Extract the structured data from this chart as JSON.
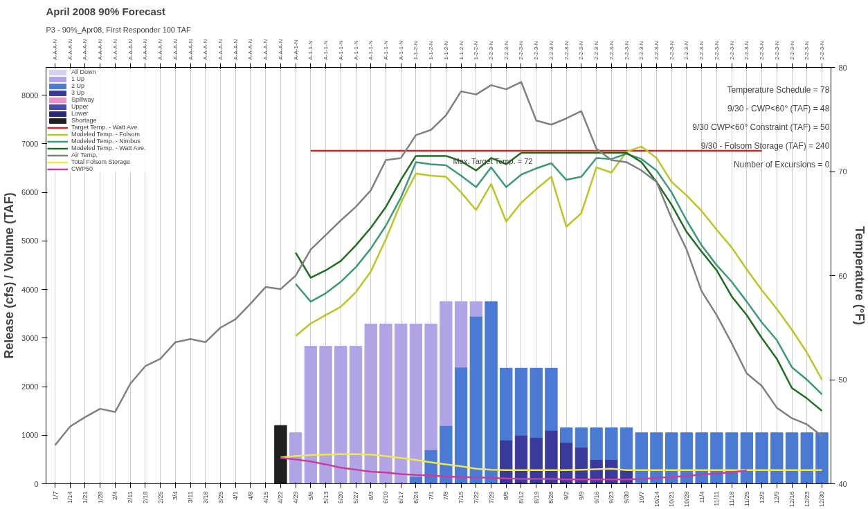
{
  "chart_data": {
    "type": "bar",
    "stacked": true,
    "title": "April 2008 90% Forecast",
    "subtitle": "P3 - 90%_Apr08, First Responder 100 TAF",
    "ylabel": "Release (cfs) / Volume (TAF)",
    "y2label": "Temperature (°F)",
    "categories": [
      "1/7",
      "1/14",
      "1/21",
      "1/28",
      "2/4",
      "2/11",
      "2/18",
      "2/25",
      "3/4",
      "3/11",
      "3/18",
      "3/25",
      "4/1",
      "4/8",
      "4/15",
      "4/22",
      "4/29",
      "5/6",
      "5/13",
      "5/20",
      "5/27",
      "6/3",
      "6/10",
      "6/17",
      "6/24",
      "7/1",
      "7/8",
      "7/15",
      "7/22",
      "7/29",
      "8/5",
      "8/12",
      "8/19",
      "8/26",
      "9/2",
      "9/9",
      "9/16",
      "9/23",
      "9/30",
      "10/7",
      "10/14",
      "10/21",
      "10/28",
      "11/4",
      "11/11",
      "11/18",
      "11/25",
      "12/2",
      "12/9",
      "12/16",
      "12/23",
      "12/30"
    ],
    "ylim": [
      0,
      8570
    ],
    "yticks": [
      0,
      1000,
      2000,
      3000,
      4000,
      5000,
      6000,
      7000,
      8000
    ],
    "y2lim": [
      40,
      80
    ],
    "y2ticks": [
      40,
      50,
      60,
      70,
      80
    ],
    "grid": "x",
    "legend": "top left",
    "series": [
      {
        "name": "Shortage",
        "color": "#202020",
        "values": [
          null,
          null,
          null,
          null,
          null,
          null,
          null,
          null,
          null,
          null,
          null,
          null,
          null,
          null,
          null,
          1200,
          null,
          null,
          null,
          null,
          null,
          null,
          null,
          null,
          null,
          null,
          null,
          null,
          null,
          null,
          null,
          null,
          null,
          null,
          null,
          null,
          null,
          null,
          null,
          null,
          null,
          null,
          null,
          null,
          null,
          null,
          null,
          null,
          null,
          null,
          null,
          null
        ]
      },
      {
        "name": "Lower",
        "color": "#2a2878",
        "values": [
          null,
          null,
          null,
          null,
          null,
          null,
          null,
          null,
          null,
          null,
          null,
          null,
          null,
          null,
          null,
          null,
          null,
          null,
          null,
          null,
          null,
          null,
          null,
          null,
          null,
          null,
          null,
          null,
          null,
          null,
          null,
          null,
          null,
          null,
          null,
          null,
          null,
          null,
          null,
          null,
          null,
          null,
          null,
          null,
          null,
          null,
          null,
          null,
          null,
          null,
          null,
          null
        ]
      },
      {
        "name": "Upper",
        "color": "#4848b0",
        "values": [
          null,
          null,
          null,
          null,
          null,
          null,
          null,
          null,
          null,
          null,
          null,
          null,
          null,
          null,
          null,
          null,
          null,
          null,
          null,
          null,
          null,
          null,
          null,
          null,
          null,
          null,
          null,
          null,
          null,
          null,
          null,
          null,
          null,
          null,
          null,
          null,
          null,
          null,
          null,
          null,
          null,
          null,
          null,
          null,
          null,
          null,
          null,
          null,
          null,
          null,
          null,
          null
        ]
      },
      {
        "name": "Spillway",
        "color": "#f090c8",
        "values": [
          null,
          null,
          null,
          null,
          null,
          null,
          null,
          null,
          null,
          null,
          null,
          null,
          null,
          null,
          null,
          null,
          null,
          null,
          null,
          null,
          null,
          null,
          null,
          null,
          null,
          null,
          null,
          null,
          null,
          null,
          null,
          null,
          null,
          null,
          null,
          null,
          null,
          null,
          null,
          null,
          null,
          null,
          null,
          null,
          null,
          null,
          null,
          null,
          null,
          null,
          null,
          null
        ]
      },
      {
        "name": "3 Up",
        "color": "#3a3a9c",
        "values": [
          null,
          null,
          null,
          null,
          null,
          null,
          null,
          null,
          null,
          null,
          null,
          null,
          null,
          null,
          null,
          null,
          null,
          null,
          null,
          null,
          null,
          null,
          null,
          null,
          null,
          null,
          null,
          null,
          null,
          null,
          900,
          1000,
          950,
          1100,
          850,
          750,
          500,
          500,
          300,
          null,
          null,
          null,
          null,
          null,
          null,
          null,
          null,
          null,
          null,
          null,
          null,
          null
        ]
      },
      {
        "name": "2 Up",
        "color": "#4a7ad4",
        "values": [
          null,
          null,
          null,
          null,
          null,
          null,
          null,
          null,
          null,
          null,
          null,
          null,
          null,
          null,
          null,
          null,
          null,
          null,
          null,
          null,
          null,
          null,
          null,
          null,
          150,
          700,
          1200,
          2400,
          3450,
          3750,
          1480,
          1380,
          1430,
          1280,
          300,
          400,
          650,
          650,
          850,
          1050,
          1050,
          1050,
          1050,
          1050,
          1050,
          1050,
          1050,
          1050,
          1050,
          1050,
          1050,
          1050
        ]
      },
      {
        "name": "1 Up",
        "color": "#b0a4e6",
        "values": [
          null,
          null,
          null,
          null,
          null,
          null,
          null,
          null,
          null,
          null,
          null,
          null,
          null,
          null,
          null,
          null,
          1050,
          2830,
          2830,
          2830,
          2830,
          3290,
          3290,
          3290,
          3140,
          2590,
          2550,
          1350,
          300,
          null,
          null,
          null,
          null,
          null,
          null,
          null,
          null,
          null,
          null,
          null,
          null,
          null,
          null,
          null,
          null,
          null,
          null,
          null,
          null,
          null,
          null,
          null
        ]
      },
      {
        "name": "All Down",
        "color": "#d4d0f0",
        "values": [
          null,
          null,
          null,
          null,
          null,
          null,
          null,
          null,
          null,
          null,
          null,
          null,
          null,
          null,
          null,
          null,
          null,
          null,
          null,
          null,
          null,
          null,
          null,
          null,
          null,
          null,
          null,
          null,
          null,
          null,
          null,
          null,
          null,
          null,
          null,
          null,
          null,
          null,
          null,
          null,
          null,
          null,
          null,
          null,
          null,
          null,
          null,
          null,
          null,
          null,
          null,
          null
        ]
      },
      {
        "name": "Target Temp. - Watt Ave.",
        "type": "line",
        "axis": "y2",
        "color": "#e02020",
        "values": [
          null,
          null,
          null,
          null,
          null,
          null,
          null,
          null,
          null,
          null,
          null,
          null,
          null,
          null,
          null,
          null,
          null,
          72,
          72,
          72,
          72,
          72,
          72,
          72,
          72,
          72,
          72,
          72,
          72,
          72,
          72,
          72,
          72,
          72,
          72,
          72,
          72,
          72,
          72,
          72,
          72,
          72,
          72,
          72,
          72,
          72,
          72,
          72,
          null,
          null,
          null,
          null
        ]
      },
      {
        "name": "Modeled Temp. - Folsom",
        "type": "line",
        "axis": "y2",
        "color": "#b8c820",
        "values": [
          null,
          null,
          null,
          null,
          null,
          null,
          null,
          null,
          null,
          null,
          null,
          null,
          null,
          null,
          null,
          null,
          54.2,
          55.4,
          56.2,
          57.0,
          58.4,
          60.4,
          63.5,
          67.0,
          69.8,
          69.6,
          69.5,
          68.0,
          66.3,
          68.8,
          65.2,
          67.0,
          68.3,
          69.5,
          64.7,
          66.0,
          70.4,
          69.9,
          71.9,
          72.4,
          71.3,
          69.0,
          67.7,
          66.2,
          64.4,
          62.7,
          60.6,
          58.6,
          56.8,
          54.8,
          52.6,
          50.0
        ]
      },
      {
        "name": "Modeled Temp. - Nimbus",
        "type": "line",
        "axis": "y2",
        "color": "#3a9a78",
        "values": [
          null,
          null,
          null,
          null,
          null,
          null,
          null,
          null,
          null,
          null,
          null,
          null,
          null,
          null,
          null,
          null,
          59.2,
          57.5,
          58.3,
          59.4,
          60.8,
          62.6,
          64.8,
          67.5,
          70.9,
          70.7,
          70.6,
          69.6,
          68.5,
          70.4,
          68.5,
          69.7,
          70.3,
          70.8,
          69.2,
          69.5,
          71.3,
          71.2,
          71.7,
          71.2,
          70.1,
          68.0,
          65.3,
          62.9,
          61.0,
          59.4,
          57.5,
          55.5,
          53.8,
          51.2,
          50.0,
          48.6
        ]
      },
      {
        "name": "Modeled Temp. - Watt Ave.",
        "type": "line",
        "axis": "y2",
        "color": "#1e6e1e",
        "values": [
          null,
          null,
          null,
          null,
          null,
          null,
          null,
          null,
          null,
          null,
          null,
          null,
          null,
          null,
          null,
          null,
          62.2,
          59.8,
          60.5,
          61.4,
          62.9,
          64.6,
          66.6,
          69.2,
          71.5,
          71.5,
          71.5,
          71.0,
          70.1,
          71.3,
          70.7,
          71.8,
          71.8,
          71.8,
          71.8,
          71.8,
          71.8,
          71.8,
          71.8,
          70.9,
          69.0,
          66.8,
          64.2,
          62.3,
          60.5,
          58.0,
          56.2,
          54.0,
          52.0,
          49.2,
          48.2,
          47.0
        ]
      },
      {
        "name": "Air Temp.",
        "type": "line",
        "axis": "y2",
        "color": "#808080",
        "values": [
          43.7,
          45.5,
          46.4,
          47.2,
          46.9,
          49.6,
          51.3,
          52.0,
          53.6,
          53.9,
          53.6,
          55.0,
          55.8,
          57.3,
          58.9,
          58.7,
          60.0,
          62.5,
          63.9,
          65.3,
          66.6,
          68.2,
          71.1,
          71.3,
          73.5,
          74.0,
          75.4,
          77.7,
          77.4,
          78.3,
          77.9,
          78.6,
          74.9,
          74.5,
          75.1,
          75.8,
          72.2,
          71.1,
          70.9,
          70.1,
          69.0,
          65.5,
          62.5,
          58.5,
          56.2,
          53.5,
          50.6,
          49.4,
          47.3,
          46.3,
          45.7,
          44.6
        ]
      },
      {
        "name": "Total Folsom Storage",
        "type": "line",
        "color": "#f0e84a",
        "values": [
          null,
          null,
          null,
          null,
          null,
          null,
          null,
          null,
          null,
          null,
          null,
          null,
          null,
          null,
          null,
          540,
          570,
          590,
          600,
          610,
          610,
          600,
          570,
          530,
          490,
          440,
          400,
          360,
          310,
          290,
          280,
          280,
          280,
          280,
          280,
          290,
          300,
          310,
          280,
          280,
          280,
          280,
          280,
          280,
          280,
          280,
          280,
          280,
          280,
          280,
          280,
          280
        ]
      },
      {
        "name": "CWP50",
        "type": "line",
        "color": "#c83ca0",
        "values": [
          null,
          null,
          null,
          null,
          null,
          null,
          null,
          null,
          null,
          null,
          null,
          null,
          null,
          null,
          null,
          530,
          500,
          460,
          400,
          330,
          290,
          250,
          230,
          200,
          180,
          170,
          150,
          140,
          130,
          120,
          110,
          100,
          100,
          100,
          90,
          90,
          90,
          90,
          90,
          100,
          120,
          140,
          160,
          190,
          210,
          240,
          270,
          null,
          null,
          null,
          null,
          null
        ]
      }
    ],
    "annotations": [
      "Max. Target Temp. = 72",
      "Temperature Schedule = 78",
      "9/30 - CWP<60° (TAF) = 48",
      "9/30 CWP<60° Constraint (TAF) = 50",
      "9/30 - Folsom Storage (TAF) = 240",
      "Number of Excursions = 0",
      {
        "text": "A-A-A-N",
        "x": "1/7"
      },
      {
        "text": "A-A-A-N",
        "x": "1/14"
      },
      {
        "text": "A-A-A-N",
        "x": "1/21"
      },
      {
        "text": "A-A-A-N",
        "x": "1/28"
      },
      {
        "text": "A-A-A-N",
        "x": "2/4"
      },
      {
        "text": "A-A-A-N",
        "x": "2/11"
      },
      {
        "text": "A-A-A-N",
        "x": "2/18"
      },
      {
        "text": "A-A-A-N",
        "x": "2/25"
      },
      {
        "text": "A-A-A-N",
        "x": "3/4"
      },
      {
        "text": "A-A-A-N",
        "x": "3/11"
      },
      {
        "text": "A-A-A-N",
        "x": "3/18"
      },
      {
        "text": "A-A-A-N",
        "x": "3/25"
      },
      {
        "text": "A-A-A-N",
        "x": "4/1"
      },
      {
        "text": "A-A-A-N",
        "x": "4/8"
      },
      {
        "text": "A-A-A-N",
        "x": "4/15"
      },
      {
        "text": "A-A-A-N",
        "x": "4/22"
      },
      {
        "text": "A-A-1-N",
        "x": "4/29"
      },
      {
        "text": "A-1-1-N",
        "x": "5/6"
      },
      {
        "text": "A-1-1-N",
        "x": "5/13"
      },
      {
        "text": "A-1-1-N",
        "x": "5/20"
      },
      {
        "text": "A-1-1-N",
        "x": "5/27"
      },
      {
        "text": "A-1-1-N",
        "x": "6/3"
      },
      {
        "text": "A-1-1-N",
        "x": "6/10"
      },
      {
        "text": "A-1-1-N",
        "x": "6/17"
      },
      {
        "text": "1-1-2-N",
        "x": "6/24"
      },
      {
        "text": "1-1-2-N",
        "x": "7/1"
      },
      {
        "text": "1-1-2-N",
        "x": "7/8"
      },
      {
        "text": "1-1-2-N",
        "x": "7/15"
      },
      {
        "text": "1-2-2-N",
        "x": "7/22"
      },
      {
        "text": "2-2-3-N",
        "x": "7/29"
      },
      {
        "text": "2-2-3-N",
        "x": "8/5"
      },
      {
        "text": "2-2-3-N",
        "x": "8/12"
      },
      {
        "text": "2-2-3-N",
        "x": "8/19"
      },
      {
        "text": "2-2-3-N",
        "x": "8/26"
      },
      {
        "text": "2-2-3-N",
        "x": "9/2"
      },
      {
        "text": "2-2-3-N",
        "x": "9/9"
      },
      {
        "text": "2-2-3-N",
        "x": "9/16"
      },
      {
        "text": "2-2-3-N",
        "x": "9/23"
      },
      {
        "text": "2-2-3-N",
        "x": "9/30"
      },
      {
        "text": "2-2-3-N",
        "x": "10/7"
      },
      {
        "text": "2-2-3-N",
        "x": "10/14"
      },
      {
        "text": "2-2-3-N",
        "x": "10/21"
      },
      {
        "text": "2-2-3-N",
        "x": "10/28"
      },
      {
        "text": "2-2-3-N",
        "x": "11/4"
      },
      {
        "text": "2-2-3-N",
        "x": "11/11"
      },
      {
        "text": "2-2-3-N",
        "x": "11/18"
      },
      {
        "text": "2-2-3-N",
        "x": "11/25"
      },
      {
        "text": "2-2-3-N",
        "x": "12/2"
      },
      {
        "text": "2-2-3-N",
        "x": "12/9"
      },
      {
        "text": "2-2-3-N",
        "x": "12/16"
      },
      {
        "text": "2-2-3-N",
        "x": "12/23"
      },
      {
        "text": "2-2-3-N",
        "x": "12/30"
      }
    ]
  }
}
